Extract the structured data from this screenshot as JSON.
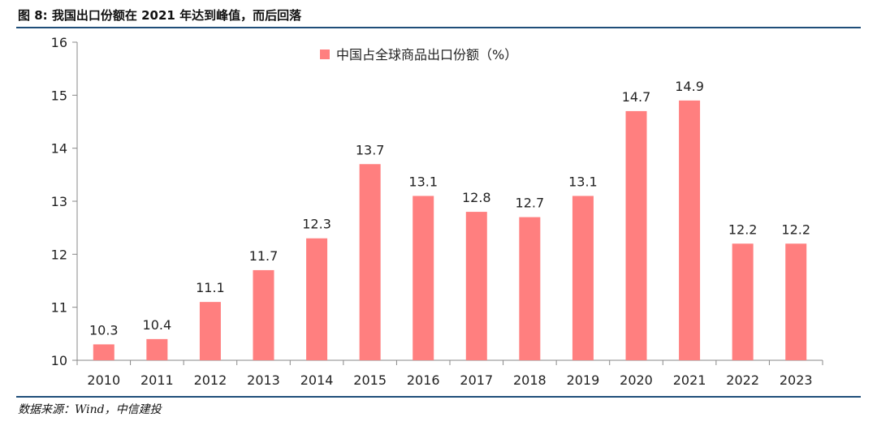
{
  "figure": {
    "title": "图 8: 我国出口份额在 2021 年达到峰值，而后回落",
    "source": "数据来源：Wind，中信建投"
  },
  "colors": {
    "bar": "#ff7f7f",
    "rule": "#1f4e79",
    "axis": "#888888"
  },
  "chart_data": {
    "type": "bar",
    "categories": [
      "2010",
      "2011",
      "2012",
      "2013",
      "2014",
      "2015",
      "2016",
      "2017",
      "2018",
      "2019",
      "2020",
      "2021",
      "2022",
      "2023"
    ],
    "series": [
      {
        "name": "中国占全球商品出口份额（%）",
        "values": [
          10.3,
          10.4,
          11.1,
          11.7,
          12.3,
          13.7,
          13.1,
          12.8,
          12.7,
          13.1,
          14.7,
          14.9,
          12.2,
          12.2
        ]
      }
    ],
    "xlabel": "",
    "ylabel": "",
    "ylim": [
      10,
      16
    ],
    "yticks": [
      10,
      11,
      12,
      13,
      14,
      15,
      16
    ],
    "grid": false,
    "legend_position": "top-center"
  }
}
